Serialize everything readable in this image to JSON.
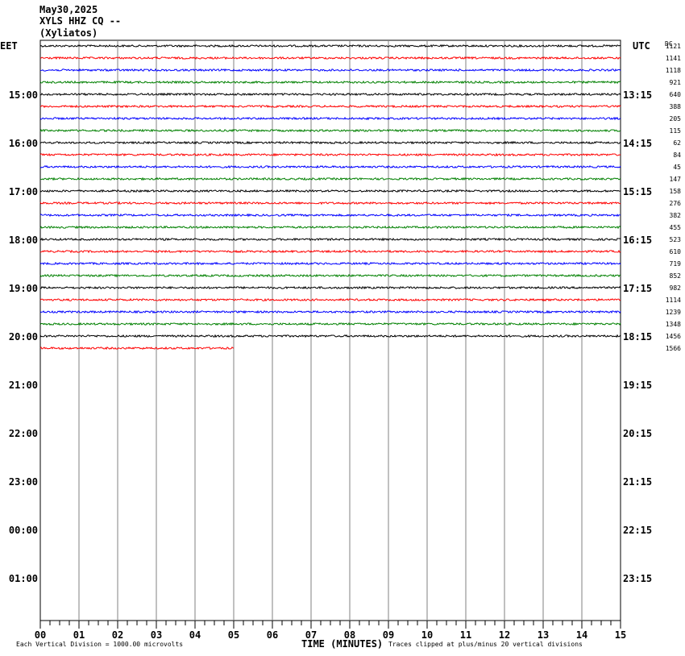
{
  "header": {
    "date": "May30,2025",
    "station": "XYLS HHZ CQ --",
    "site": "(Xyliatos)"
  },
  "labels": {
    "left_tz": "EET",
    "right_tz": "UTC",
    "dc": "DC",
    "time_axis": "TIME (MINUTES)",
    "vertical_division": "Each Vertical Division = 1000.00 microvolts",
    "clip_note": "Traces clipped at plus/minus 20 vertical divisions"
  },
  "chart_data": {
    "type": "line",
    "title": "XYLS HHZ CQ -- (Xyliatos)",
    "xlabel": "TIME (MINUTES)",
    "xlim": [
      0,
      15
    ],
    "x_ticks": [
      "00",
      "01",
      "02",
      "03",
      "04",
      "05",
      "06",
      "07",
      "08",
      "09",
      "10",
      "11",
      "12",
      "13",
      "14",
      "15"
    ],
    "left_hour_labels": [
      "15:00",
      "16:00",
      "17:00",
      "18:00",
      "19:00",
      "20:00",
      "21:00",
      "22:00",
      "23:00",
      "00:00",
      "01:00"
    ],
    "right_hour_labels": [
      "13:15",
      "14:15",
      "15:15",
      "16:15",
      "17:15",
      "18:15",
      "19:15",
      "20:15",
      "21:15",
      "22:15",
      "23:15"
    ],
    "trace_colors": [
      "#000000",
      "#ff0000",
      "#0000ff",
      "#008000"
    ],
    "dc_offsets": [
      1121,
      1141,
      1118,
      921,
      640,
      388,
      205,
      115,
      62,
      84,
      45,
      147,
      158,
      276,
      382,
      455,
      523,
      610,
      719,
      852,
      982,
      1114,
      1239,
      1348,
      1456,
      1566
    ],
    "partial_last_trace_minutes": 5,
    "grid": true
  }
}
